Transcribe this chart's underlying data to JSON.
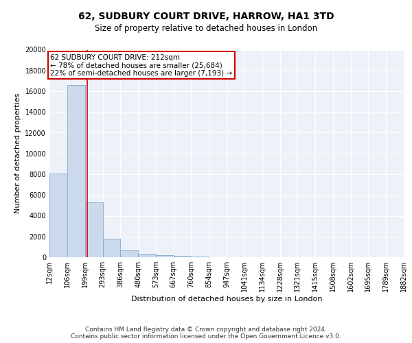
{
  "title": "62, SUDBURY COURT DRIVE, HARROW, HA1 3TD",
  "subtitle": "Size of property relative to detached houses in London",
  "xlabel": "Distribution of detached houses by size in London",
  "ylabel": "Number of detached properties",
  "bar_color": "#ccd9ec",
  "bar_edge_color": "#7aabcf",
  "background_color": "#ffffff",
  "plot_bg_color": "#eef2f8",
  "grid_color": "#ffffff",
  "property_line_color": "#cc0000",
  "property_sqm": 212,
  "annotation_line1": "62 SUDBURY COURT DRIVE: 212sqm",
  "annotation_line2": "← 78% of detached houses are smaller (25,684)",
  "annotation_line3": "22% of semi-detached houses are larger (7,193) →",
  "footer_text": "Contains HM Land Registry data © Crown copyright and database right 2024.\nContains public sector information licensed under the Open Government Licence v3.0.",
  "bin_edges": [
    12,
    106,
    199,
    293,
    386,
    480,
    573,
    667,
    760,
    854,
    947,
    1041,
    1134,
    1228,
    1321,
    1415,
    1508,
    1602,
    1695,
    1789,
    1882
  ],
  "bin_heights": [
    8050,
    16600,
    5300,
    1800,
    650,
    350,
    200,
    100,
    50,
    30,
    15,
    8,
    5,
    4,
    3,
    2,
    2,
    1,
    1,
    1
  ],
  "ylim": [
    0,
    20000
  ],
  "yticks": [
    0,
    2000,
    4000,
    6000,
    8000,
    10000,
    12000,
    14000,
    16000,
    18000,
    20000
  ],
  "title_fontsize": 10,
  "subtitle_fontsize": 8.5,
  "axis_label_fontsize": 8,
  "tick_fontsize": 7,
  "annotation_fontsize": 7.5,
  "footer_fontsize": 6.5
}
